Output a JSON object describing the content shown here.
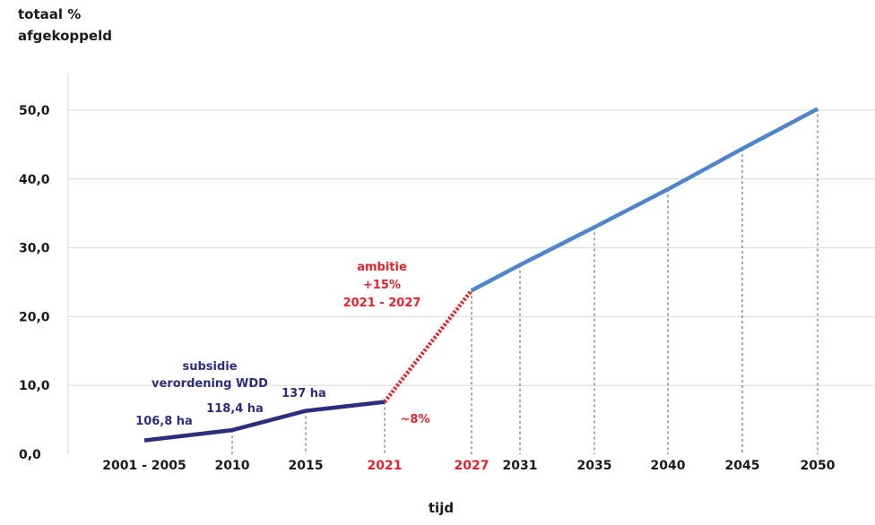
{
  "chart_data": {
    "type": "line",
    "ylabel_lines": [
      "totaal %",
      "afgekoppeld"
    ],
    "xlabel": "tijd",
    "ylim": [
      0,
      50
    ],
    "yticks": [
      "0,0",
      "10,0",
      "20,0",
      "30,0",
      "40,0",
      "50,0"
    ],
    "ytick_values": [
      0,
      10,
      20,
      30,
      40,
      50
    ],
    "xticks": [
      "2001 - 2005",
      "2010",
      "2015",
      "2021",
      "2027",
      "2031",
      "2035",
      "2040",
      "2045",
      "2050"
    ],
    "xtick_highlight": [
      "2021",
      "2027"
    ],
    "grid": "horizontal",
    "series": [
      {
        "style": "solid",
        "color": "#2d2d7e",
        "x": [
          "2001 - 2005",
          "2010",
          "2015",
          "2021"
        ],
        "y": [
          2,
          3.5,
          6.3,
          7.6
        ]
      },
      {
        "style": "dotted",
        "color": "#e3232e",
        "x": [
          "2021",
          "2027"
        ],
        "y": [
          7.6,
          23.8
        ]
      },
      {
        "style": "solid",
        "color": "#4f86c6",
        "x": [
          "2027",
          "2031",
          "2035",
          "2040",
          "2045",
          "2050"
        ],
        "y": [
          23.8,
          27.5,
          33,
          38.5,
          44.4,
          50.2
        ]
      }
    ],
    "annotations": [
      {
        "text": "106,8 ha",
        "color": "#2d2d7e"
      },
      {
        "text": "118,4 ha",
        "color": "#2d2d7e"
      },
      {
        "text": "137 ha",
        "color": "#2d2d7e"
      },
      {
        "text": "subsidie",
        "color": "#2d2d7e"
      },
      {
        "text": "verordening WDD",
        "color": "#2d2d7e"
      },
      {
        "text": "ambitie",
        "color": "#e3232e"
      },
      {
        "text": "+15%",
        "color": "#e3232e"
      },
      {
        "text": "2021 - 2027",
        "color": "#e3232e"
      },
      {
        "text": "~8%",
        "color": "#e3232e"
      }
    ],
    "colors": {
      "historic": "#2d2d7e",
      "ambition": "#e3232e",
      "projection": "#4f86c6",
      "axis_text": "#1a1a1a"
    }
  }
}
